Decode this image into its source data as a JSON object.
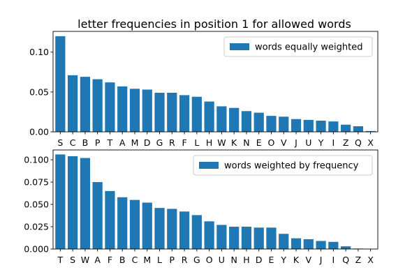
{
  "chart_data": [
    {
      "type": "bar",
      "title": "letter frequencies in position 1 for allowed words",
      "xlabel": "",
      "ylabel": "",
      "categories": [
        "S",
        "C",
        "B",
        "P",
        "T",
        "A",
        "M",
        "D",
        "G",
        "R",
        "F",
        "L",
        "H",
        "W",
        "K",
        "N",
        "E",
        "O",
        "V",
        "J",
        "U",
        "Y",
        "I",
        "Z",
        "Q",
        "X"
      ],
      "series": [
        {
          "name": "words equally weighted",
          "color": "#1f77b4",
          "values": [
            0.12,
            0.071,
            0.069,
            0.066,
            0.062,
            0.057,
            0.054,
            0.053,
            0.049,
            0.049,
            0.046,
            0.044,
            0.038,
            0.032,
            0.03,
            0.026,
            0.024,
            0.02,
            0.019,
            0.016,
            0.015,
            0.014,
            0.013,
            0.009,
            0.007,
            0.001
          ]
        }
      ],
      "yticks": [
        0.0,
        0.05,
        0.1
      ],
      "ytick_labels": [
        "0.00",
        "0.05",
        "0.10"
      ],
      "ylim": [
        0,
        0.126
      ],
      "legend": "top-right",
      "grid": false
    },
    {
      "type": "bar",
      "title": "",
      "xlabel": "",
      "ylabel": "",
      "categories": [
        "T",
        "S",
        "W",
        "A",
        "F",
        "B",
        "C",
        "M",
        "L",
        "P",
        "R",
        "G",
        "O",
        "U",
        "N",
        "H",
        "D",
        "E",
        "Y",
        "K",
        "V",
        "J",
        "I",
        "Q",
        "Z",
        "X"
      ],
      "series": [
        {
          "name": "words weighted by frequency",
          "color": "#1f77b4",
          "values": [
            0.106,
            0.104,
            0.102,
            0.075,
            0.065,
            0.058,
            0.055,
            0.052,
            0.046,
            0.045,
            0.042,
            0.038,
            0.031,
            0.027,
            0.025,
            0.025,
            0.024,
            0.024,
            0.017,
            0.012,
            0.011,
            0.009,
            0.008,
            0.003,
            0.0005,
            0.0003
          ]
        }
      ],
      "yticks": [
        0.0,
        0.025,
        0.05,
        0.075,
        0.1
      ],
      "ytick_labels": [
        "0.000",
        "0.025",
        "0.050",
        "0.075",
        "0.100"
      ],
      "ylim": [
        0,
        0.111
      ],
      "legend": "top-right",
      "grid": false
    }
  ]
}
